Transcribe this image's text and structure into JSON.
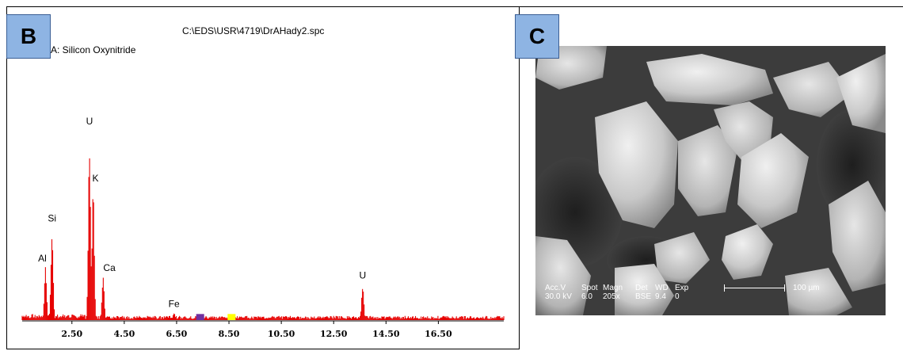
{
  "panels": {
    "left_label": "B",
    "right_label": "C"
  },
  "spectrum": {
    "file_path": "C:\\EDS\\USR\\4719\\DrAHady2.spc",
    "sample_label": "A: Silicon Oxynitride"
  },
  "chart_data": {
    "type": "bar",
    "title": "C:\\EDS\\USR\\4719\\DrAHady2.spc",
    "subtitle": "A: Silicon Oxynitride",
    "xlabel": "",
    "ylabel": "",
    "xlim": [
      0.6,
      19.0
    ],
    "ylim": [
      0,
      100
    ],
    "x_ticks": [
      "2.50",
      "4.50",
      "6.50",
      "8.50",
      "10.50",
      "12.50",
      "14.50",
      "16.50"
    ],
    "grid": false,
    "color": "#e60000",
    "peaks": [
      {
        "label": "Al",
        "x": 1.49,
        "y": 28
      },
      {
        "label": "Si",
        "x": 1.74,
        "y": 49
      },
      {
        "label": "U",
        "x": 3.17,
        "y": 100
      },
      {
        "label": "K",
        "x": 3.31,
        "y": 70
      },
      {
        "label": "Ca",
        "x": 3.69,
        "y": 23
      },
      {
        "label": "Fe",
        "x": 6.4,
        "y": 4
      },
      {
        "label": "U",
        "x": 13.61,
        "y": 19
      }
    ],
    "markers": [
      {
        "x": 7.4,
        "color": "#7030a0"
      },
      {
        "x": 8.6,
        "color": "#ffff00"
      }
    ]
  },
  "sem": {
    "acc_v_label": "Acc.V",
    "acc_v_value": "30.0 kV",
    "spot_label": "Spot",
    "spot_value": "6.0",
    "magn_label": "Magn",
    "magn_value": "205x",
    "det_label": "Det",
    "det_value": "BSE",
    "wd_label": "WD",
    "wd_value": "9.4",
    "exp_label": "Exp",
    "exp_value": "0",
    "scale_label": "100 µm"
  }
}
